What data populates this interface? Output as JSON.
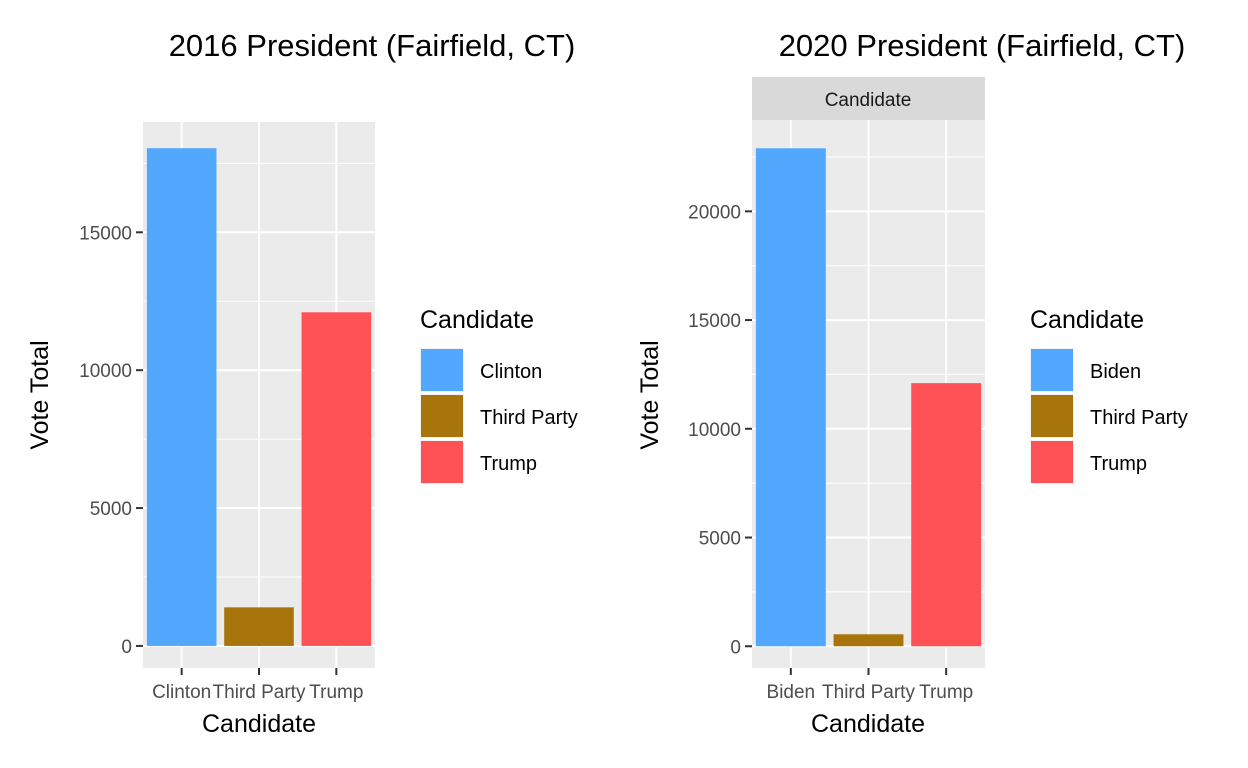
{
  "chart_data": [
    {
      "type": "bar",
      "title": "2016 President (Fairfield, CT)",
      "xlabel": "Candidate",
      "ylabel": "Vote Total",
      "strip_label": "",
      "categories": [
        "Clinton",
        "Third Party",
        "Trump"
      ],
      "values": [
        18050,
        1400,
        12100
      ],
      "colors": [
        "#52A8FF",
        "#A8740C",
        "#FF5257"
      ],
      "yticks": [
        0,
        5000,
        10000,
        15000
      ],
      "ylim": [
        -800,
        19000
      ],
      "grid": true,
      "legend": {
        "title": "Candidate",
        "position": "right",
        "entries": [
          "Clinton",
          "Third Party",
          "Trump"
        ]
      }
    },
    {
      "type": "bar",
      "title": "2020 President (Fairfield, CT)",
      "xlabel": "Candidate",
      "ylabel": "Vote Total",
      "strip_label": "Candidate",
      "categories": [
        "Biden",
        "Third Party",
        "Trump"
      ],
      "values": [
        22900,
        550,
        12100
      ],
      "colors": [
        "#52A8FF",
        "#A8740C",
        "#FF5257"
      ],
      "yticks": [
        0,
        5000,
        10000,
        15000,
        20000
      ],
      "ylim": [
        -1000,
        24200
      ],
      "grid": true,
      "legend": {
        "title": "Candidate",
        "position": "right",
        "entries": [
          "Biden",
          "Third Party",
          "Trump"
        ]
      }
    }
  ]
}
